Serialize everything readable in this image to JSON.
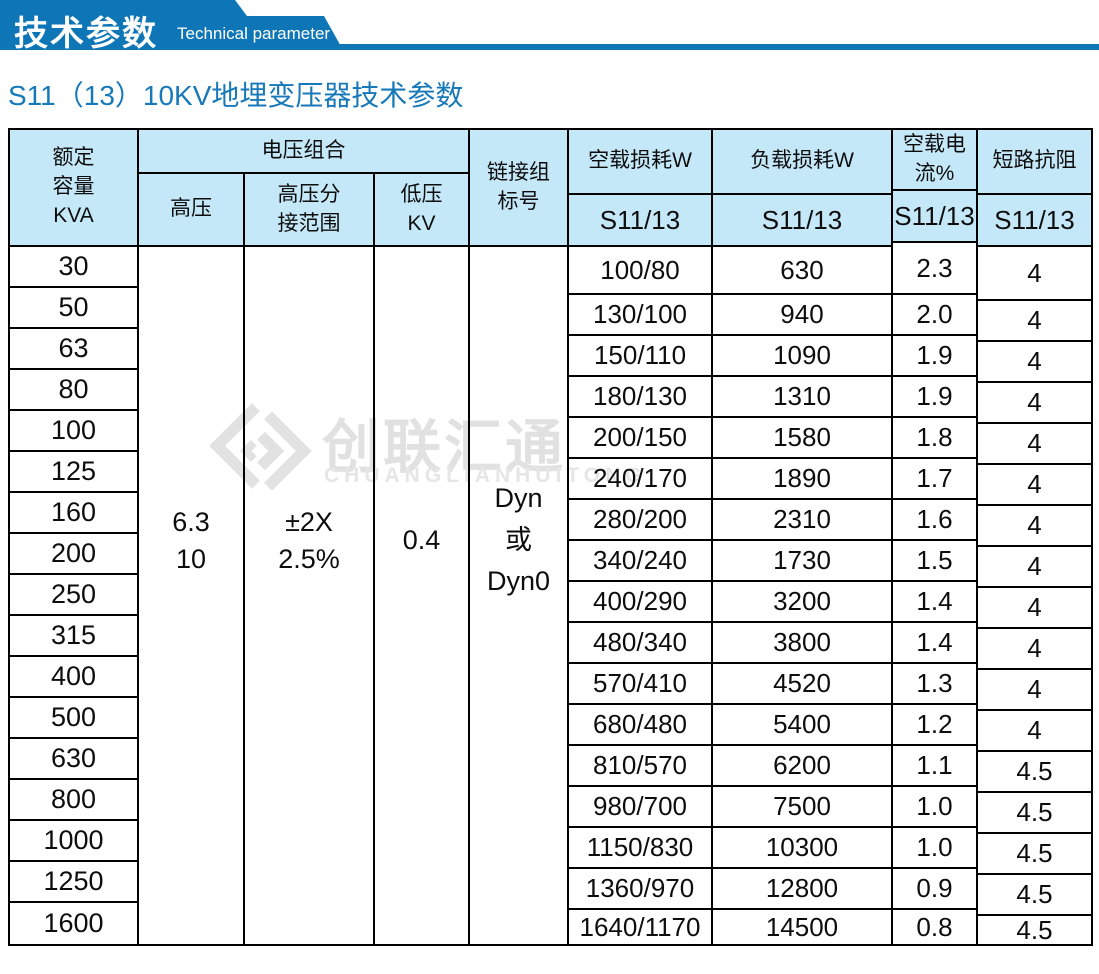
{
  "banner": {
    "title": "技术参数",
    "subtitle": "Technical parameter"
  },
  "page_title": "S11（13）10KV地埋变压器技术参数",
  "watermark": {
    "cn": "创联汇通",
    "en": "CHUANGLIANHUITONG"
  },
  "colors": {
    "brand_blue": "#0e76b6",
    "title_blue": "#1779b9",
    "header_bg": "#c5e8f8",
    "border": "#000000",
    "watermark_gray": "#e1e1e1"
  },
  "table": {
    "headers": {
      "kva_lines": [
        "额定",
        "容量",
        "KVA"
      ],
      "voltage_group": "电压组合",
      "hv": "高压",
      "hv_tap_lines": [
        "高压分",
        "接范围"
      ],
      "lv_lines": [
        "低压",
        "KV"
      ],
      "link_lines": [
        "链接组",
        "标号"
      ],
      "no_load_loss": "空载损耗W",
      "load_loss": "负载损耗W",
      "no_load_current": "空载电流%",
      "impedance": "短路抗阻",
      "series": "S11/13"
    },
    "merged": {
      "hv_lines": [
        "6.3",
        "10"
      ],
      "tap_lines": [
        "±2X",
        "2.5%"
      ],
      "lv": "0.4",
      "link_lines": [
        "Dyn",
        "或",
        "Dyn0"
      ]
    },
    "rows": [
      {
        "kva": "30",
        "no_load_loss": "100/80",
        "load_loss": "630",
        "no_load_current": "2.3",
        "impedance": "4"
      },
      {
        "kva": "50",
        "no_load_loss": "130/100",
        "load_loss": "940",
        "no_load_current": "2.0",
        "impedance": "4"
      },
      {
        "kva": "63",
        "no_load_loss": "150/110",
        "load_loss": "1090",
        "no_load_current": "1.9",
        "impedance": "4"
      },
      {
        "kva": "80",
        "no_load_loss": "180/130",
        "load_loss": "1310",
        "no_load_current": "1.9",
        "impedance": "4"
      },
      {
        "kva": "100",
        "no_load_loss": "200/150",
        "load_loss": "1580",
        "no_load_current": "1.8",
        "impedance": "4"
      },
      {
        "kva": "125",
        "no_load_loss": "240/170",
        "load_loss": "1890",
        "no_load_current": "1.7",
        "impedance": "4"
      },
      {
        "kva": "160",
        "no_load_loss": "280/200",
        "load_loss": "2310",
        "no_load_current": "1.6",
        "impedance": "4"
      },
      {
        "kva": "200",
        "no_load_loss": "340/240",
        "load_loss": "1730",
        "no_load_current": "1.5",
        "impedance": "4"
      },
      {
        "kva": "250",
        "no_load_loss": "400/290",
        "load_loss": "3200",
        "no_load_current": "1.4",
        "impedance": "4"
      },
      {
        "kva": "315",
        "no_load_loss": "480/340",
        "load_loss": "3800",
        "no_load_current": "1.4",
        "impedance": "4"
      },
      {
        "kva": "400",
        "no_load_loss": "570/410",
        "load_loss": "4520",
        "no_load_current": "1.3",
        "impedance": "4"
      },
      {
        "kva": "500",
        "no_load_loss": "680/480",
        "load_loss": "5400",
        "no_load_current": "1.2",
        "impedance": "4"
      },
      {
        "kva": "630",
        "no_load_loss": "810/570",
        "load_loss": "6200",
        "no_load_current": "1.1",
        "impedance": "4.5"
      },
      {
        "kva": "800",
        "no_load_loss": "980/700",
        "load_loss": "7500",
        "no_load_current": "1.0",
        "impedance": "4.5"
      },
      {
        "kva": "1000",
        "no_load_loss": "1150/830",
        "load_loss": "10300",
        "no_load_current": "1.0",
        "impedance": "4.5"
      },
      {
        "kva": "1250",
        "no_load_loss": "1360/970",
        "load_loss": "12800",
        "no_load_current": "0.9",
        "impedance": "4.5"
      },
      {
        "kva": "1600",
        "no_load_loss": "1640/1170",
        "load_loss": "14500",
        "no_load_current": "0.8",
        "impedance": "4.5"
      }
    ]
  }
}
